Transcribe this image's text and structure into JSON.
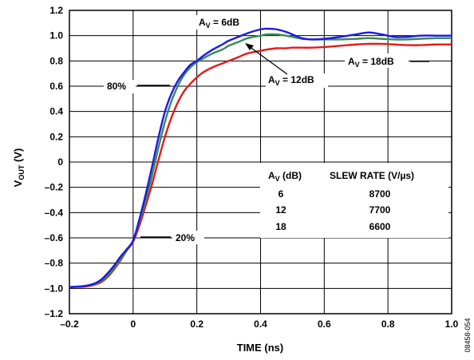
{
  "chart_data": {
    "type": "line",
    "xlabel": "TIME (ns)",
    "ylabel": "V_OUT (V)",
    "xlim": [
      -0.2,
      1.0
    ],
    "ylim": [
      -1.2,
      1.2
    ],
    "x_ticks": [
      -0.2,
      0,
      0.2,
      0.4,
      0.6,
      0.8,
      1.0
    ],
    "x_tick_labels": [
      "–0.2",
      "0",
      "0.2",
      "0.4",
      "0.6",
      "0.8",
      "1.0"
    ],
    "y_ticks": [
      1.2,
      1.0,
      0.8,
      0.6,
      0.4,
      0.2,
      0,
      -0.2,
      -0.4,
      -0.6,
      -0.8,
      -1.0,
      -1.2
    ],
    "y_tick_labels": [
      "1.2",
      "1.0",
      "0.8",
      "0.6",
      "0.4",
      "0.2",
      "0",
      "–0.2",
      "–0.4",
      "–0.6",
      "–0.8",
      "–1.0",
      "–1.2"
    ],
    "grid": true,
    "series": [
      {
        "name": "AV = 6dB",
        "color": "#1a1ae6",
        "x": [
          -0.2,
          -0.15,
          -0.12,
          -0.1,
          -0.08,
          -0.06,
          -0.04,
          -0.02,
          0,
          0.02,
          0.04,
          0.06,
          0.08,
          0.1,
          0.12,
          0.14,
          0.16,
          0.18,
          0.2,
          0.22,
          0.25,
          0.28,
          0.3,
          0.33,
          0.36,
          0.4,
          0.42,
          0.45,
          0.48,
          0.5,
          0.53,
          0.56,
          0.6,
          0.65,
          0.7,
          0.74,
          0.78,
          0.82,
          0.86,
          0.9,
          0.95,
          1.0
        ],
        "y": [
          -0.99,
          -0.98,
          -0.96,
          -0.93,
          -0.88,
          -0.82,
          -0.75,
          -0.69,
          -0.62,
          -0.45,
          -0.25,
          -0.03,
          0.2,
          0.4,
          0.54,
          0.64,
          0.71,
          0.77,
          0.8,
          0.84,
          0.89,
          0.93,
          0.96,
          0.99,
          1.02,
          1.05,
          1.055,
          1.05,
          1.03,
          1.01,
          0.98,
          0.97,
          0.975,
          0.99,
          1.01,
          1.025,
          1.01,
          0.99,
          0.99,
          1.0,
          1.0,
          1.0
        ]
      },
      {
        "name": "AV = 12dB",
        "color": "#3a8a55",
        "x": [
          -0.2,
          -0.15,
          -0.12,
          -0.1,
          -0.08,
          -0.06,
          -0.04,
          -0.02,
          0,
          0.02,
          0.04,
          0.06,
          0.08,
          0.1,
          0.12,
          0.14,
          0.16,
          0.18,
          0.2,
          0.22,
          0.25,
          0.28,
          0.3,
          0.33,
          0.36,
          0.4,
          0.42,
          0.45,
          0.48,
          0.5,
          0.53,
          0.56,
          0.6,
          0.65,
          0.7,
          0.74,
          0.78,
          0.82,
          0.86,
          0.9,
          0.95,
          1.0
        ],
        "y": [
          -0.99,
          -0.98,
          -0.965,
          -0.94,
          -0.9,
          -0.84,
          -0.77,
          -0.7,
          -0.62,
          -0.47,
          -0.3,
          -0.1,
          0.12,
          0.32,
          0.48,
          0.6,
          0.69,
          0.75,
          0.79,
          0.82,
          0.86,
          0.89,
          0.92,
          0.95,
          0.98,
          1.0,
          1.01,
          1.01,
          1.0,
          0.99,
          0.975,
          0.97,
          0.97,
          0.97,
          0.975,
          0.98,
          0.975,
          0.97,
          0.97,
          0.975,
          0.98,
          0.98
        ]
      },
      {
        "name": "AV = 18dB",
        "color": "#e21b1b",
        "x": [
          -0.2,
          -0.15,
          -0.12,
          -0.1,
          -0.08,
          -0.06,
          -0.04,
          -0.02,
          0,
          0.02,
          0.04,
          0.06,
          0.08,
          0.1,
          0.12,
          0.14,
          0.16,
          0.18,
          0.2,
          0.22,
          0.25,
          0.28,
          0.3,
          0.33,
          0.36,
          0.4,
          0.42,
          0.45,
          0.48,
          0.5,
          0.53,
          0.56,
          0.6,
          0.65,
          0.7,
          0.74,
          0.78,
          0.82,
          0.86,
          0.9,
          0.95,
          1.0
        ],
        "y": [
          -0.99,
          -0.985,
          -0.97,
          -0.95,
          -0.91,
          -0.85,
          -0.78,
          -0.7,
          -0.63,
          -0.5,
          -0.34,
          -0.17,
          0.02,
          0.2,
          0.35,
          0.47,
          0.56,
          0.62,
          0.67,
          0.71,
          0.75,
          0.78,
          0.8,
          0.83,
          0.86,
          0.88,
          0.89,
          0.9,
          0.9,
          0.905,
          0.905,
          0.905,
          0.91,
          0.92,
          0.93,
          0.935,
          0.935,
          0.93,
          0.925,
          0.925,
          0.93,
          0.93
        ]
      }
    ],
    "annotations": {
      "av6": "A",
      "av6_sub": "V",
      "av6_rest": " = 6dB",
      "av12": "A",
      "av12_sub": "V",
      "av12_rest": " = 12dB",
      "av18": "A",
      "av18_sub": "V",
      "av18_rest": " = 18dB",
      "pct80": "80%",
      "pct20": "20%"
    },
    "table": {
      "col1_header_main": "A",
      "col1_header_sub": "V",
      "col1_header_rest": " (dB)",
      "col2_header": "SLEW RATE (V/µs)",
      "rows": [
        {
          "gain": "6",
          "slew": "8700"
        },
        {
          "gain": "12",
          "slew": "7700"
        },
        {
          "gain": "18",
          "slew": "6600"
        }
      ]
    },
    "ylabel_main": "V",
    "ylabel_sub": "OUT",
    "ylabel_rest": " (V)",
    "figure_id": "08458-054"
  }
}
